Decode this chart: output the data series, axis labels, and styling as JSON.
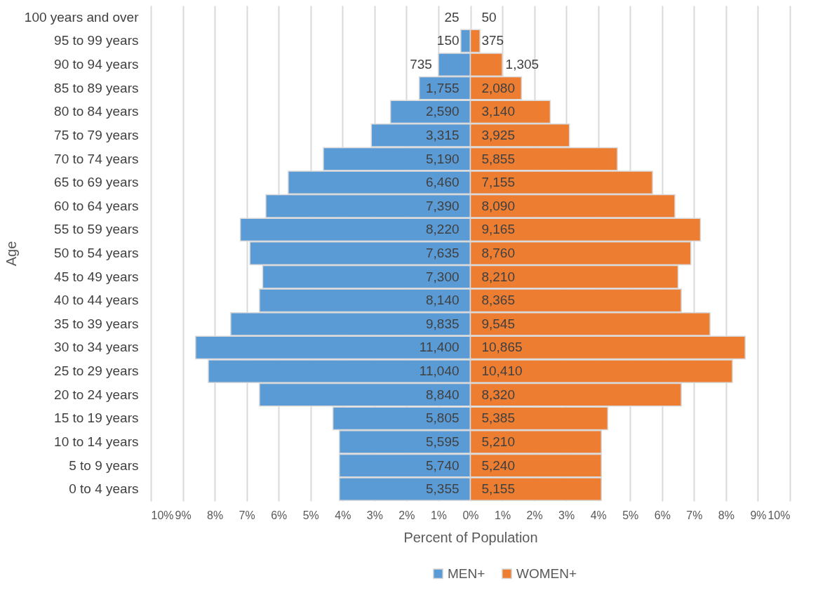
{
  "chart_data": {
    "type": "bar",
    "orientation": "horizontal",
    "stacked": true,
    "xlabel": "Percent of Population",
    "ylabel": "Age",
    "categories": [
      "100 years and over",
      "95 to 99 years",
      "90 to 94 years",
      "85 to 89 years",
      "80 to 84 years",
      "75 to 79 years",
      "70 to 74 years",
      "65 to 69 years",
      "60 to 64 years",
      "55 to 59 years",
      "50 to 54 years",
      "45 to 49 years",
      "40 to 44 years",
      "35 to 39 years",
      "30 to 34 years",
      "25 to 29 years",
      "20 to 24 years",
      "15 to 19 years",
      "10 to 14 years",
      "5 to 9 years",
      "0 to 4 years"
    ],
    "series": [
      {
        "name": "MEN+",
        "color": "#5b9bd5",
        "values": [
          0,
          -0.3,
          -1.0,
          -1.6,
          -2.5,
          -3.1,
          -4.6,
          -5.7,
          -6.4,
          -7.2,
          -6.9,
          -6.5,
          -6.6,
          -7.5,
          -8.6,
          -8.2,
          -6.6,
          -4.3,
          -4.1,
          -4.1,
          -4.1
        ]
      },
      {
        "name": "WOMEN+",
        "color": "#ed7d31",
        "values": [
          0,
          0.3,
          1.0,
          1.6,
          2.5,
          3.1,
          4.6,
          5.7,
          6.4,
          7.2,
          6.9,
          6.5,
          6.6,
          7.5,
          8.6,
          8.2,
          6.6,
          4.3,
          4.1,
          4.1,
          4.1
        ]
      }
    ],
    "annotations": [
      {
        "text": "25",
        "x": -0.35,
        "y": "100 years and over"
      },
      {
        "text": "150",
        "x": -0.35,
        "y": "95 to 99 years"
      },
      {
        "text": "735",
        "x": -1.2,
        "y": "90 to 94 years"
      },
      {
        "text": "1,755",
        "x": -0.35,
        "y": "85 to 89 years"
      },
      {
        "text": "2,590",
        "x": -0.35,
        "y": "80 to 84 years"
      },
      {
        "text": "3,315",
        "x": -0.35,
        "y": "75 to 79 years"
      },
      {
        "text": "5,190",
        "x": -0.35,
        "y": "70 to 74 years"
      },
      {
        "text": "6,460",
        "x": -0.35,
        "y": "65 to 69 years"
      },
      {
        "text": "7,390",
        "x": -0.35,
        "y": "60 to 64 years"
      },
      {
        "text": "8,220",
        "x": -0.35,
        "y": "55 to 59 years"
      },
      {
        "text": "7,635",
        "x": -0.35,
        "y": "50 to 54 years"
      },
      {
        "text": "7,300",
        "x": -0.35,
        "y": "45 to 49 years"
      },
      {
        "text": "8,140",
        "x": -0.35,
        "y": "40 to 44 years"
      },
      {
        "text": "9,835",
        "x": -0.35,
        "y": "35 to 39 years"
      },
      {
        "text": "11,400",
        "x": -0.35,
        "y": "30 to 34 years"
      },
      {
        "text": "11,040",
        "x": -0.35,
        "y": "25 to 29 years"
      },
      {
        "text": "8,840",
        "x": -0.35,
        "y": "20 to 24 years"
      },
      {
        "text": "5,805",
        "x": -0.35,
        "y": "15 to 19 years"
      },
      {
        "text": "5,595",
        "x": -0.35,
        "y": "10 to 14 years"
      },
      {
        "text": "5,740",
        "x": -0.35,
        "y": "5 to 9 years"
      },
      {
        "text": "5,355",
        "x": -0.35,
        "y": "0 to 4 years"
      },
      {
        "text": "50",
        "x": 0.35,
        "y": "100 years and over"
      },
      {
        "text": "375",
        "x": 0.35,
        "y": "95 to 99 years"
      },
      {
        "text": "1,305",
        "x": 1.1,
        "y": "90 to 94 years"
      },
      {
        "text": "2,080",
        "x": 0.35,
        "y": "85 to 89 years"
      },
      {
        "text": "3,140",
        "x": 0.35,
        "y": "80 to 84 years"
      },
      {
        "text": "3,925",
        "x": 0.35,
        "y": "75 to 79 years"
      },
      {
        "text": "5,855",
        "x": 0.35,
        "y": "70 to 74 years"
      },
      {
        "text": "7,155",
        "x": 0.35,
        "y": "65 to 69 years"
      },
      {
        "text": "8,090",
        "x": 0.35,
        "y": "60 to 64 years"
      },
      {
        "text": "9,165",
        "x": 0.35,
        "y": "55 to 59 years"
      },
      {
        "text": "8,760",
        "x": 0.35,
        "y": "50 to 54 years"
      },
      {
        "text": "8,210",
        "x": 0.35,
        "y": "45 to 49 years"
      },
      {
        "text": "8,365",
        "x": 0.35,
        "y": "40 to 44 years"
      },
      {
        "text": "9,545",
        "x": 0.35,
        "y": "35 to 39 years"
      },
      {
        "text": "10,865",
        "x": 0.35,
        "y": "30 to 34 years"
      },
      {
        "text": "10,410",
        "x": 0.35,
        "y": "25 to 29 years"
      },
      {
        "text": "8,320",
        "x": 0.35,
        "y": "20 to 24 years"
      },
      {
        "text": "5,385",
        "x": 0.35,
        "y": "15 to 19 years"
      },
      {
        "text": "5,210",
        "x": 0.35,
        "y": "10 to 14 years"
      },
      {
        "text": "5,240",
        "x": 0.35,
        "y": "5 to 9 years"
      },
      {
        "text": "5,155",
        "x": 0.35,
        "y": "0 to 4 years"
      }
    ],
    "xlim": [
      -10,
      10
    ],
    "xticks": [
      {
        "value": -10,
        "label": "10%"
      },
      {
        "value": -9,
        "label": "9%"
      },
      {
        "value": -8,
        "label": "8%"
      },
      {
        "value": -7,
        "label": "7%"
      },
      {
        "value": -6,
        "label": "6%"
      },
      {
        "value": -5,
        "label": "5%"
      },
      {
        "value": -4,
        "label": "4%"
      },
      {
        "value": -3,
        "label": "3%"
      },
      {
        "value": -2,
        "label": "2%"
      },
      {
        "value": -1,
        "label": "1%"
      },
      {
        "value": 0,
        "label": "0%"
      },
      {
        "value": 1,
        "label": "1%"
      },
      {
        "value": 2,
        "label": "2%"
      },
      {
        "value": 3,
        "label": "3%"
      },
      {
        "value": 4,
        "label": "4%"
      },
      {
        "value": 5,
        "label": "5%"
      },
      {
        "value": 6,
        "label": "6%"
      },
      {
        "value": 7,
        "label": "7%"
      },
      {
        "value": 8,
        "label": "8%"
      },
      {
        "value": 9,
        "label": "9%"
      },
      {
        "value": 10,
        "label": "10%"
      }
    ],
    "grid": "x",
    "legend": "bottom"
  }
}
